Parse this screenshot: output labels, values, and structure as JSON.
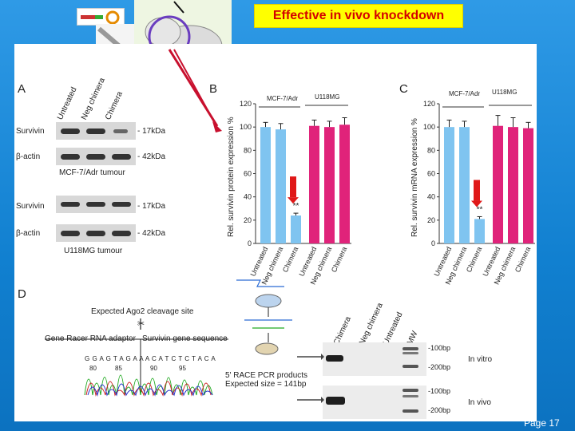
{
  "slide": {
    "title": "Effective in vivo knockdown",
    "page_label": "Page 17"
  },
  "panel_a": {
    "letter": "A",
    "lane_labels": [
      "Untreated",
      "Neg chimera",
      "Chimera"
    ],
    "blot_rows": [
      {
        "name": "Survivin",
        "size": "- 17kDa"
      },
      {
        "name": "β-actin",
        "size": "- 42kDa"
      },
      {
        "name": "Survivin",
        "size": "- 17kDa"
      },
      {
        "name": "β-actin",
        "size": "- 42kDa"
      }
    ],
    "group1": "MCF-7/Adr tumour",
    "group2": "U118MG tumour"
  },
  "panel_b": {
    "letter": "B",
    "ylabel": "Rel. survivin protein expression %",
    "groups": [
      "MCF-7/Adr",
      "U118MG"
    ],
    "significance": "**"
  },
  "panel_c": {
    "letter": "C",
    "ylabel": "Rel. survivin mRNA expression %",
    "groups": [
      "MCF-7/Adr",
      "U118MG"
    ],
    "significance": "**"
  },
  "panel_d": {
    "letter": "D",
    "cleavage_label": "Expected Ago2 cleavage site",
    "adaptor_label": "Gene Racer RNA adaptor",
    "gene_label": "Survivin gene sequence",
    "sequence": "G G A G T A G A A A C A T C T C T A C A",
    "positions": [
      "80",
      "85",
      "90",
      "95"
    ],
    "race_text": "5' RACE PCR products Expected size = 141bp",
    "gel_lanes": [
      "Chimera",
      "Neg chimera",
      "Untreated",
      "MW"
    ],
    "gel_markers": [
      "-100bp",
      "-200bp"
    ],
    "gel_conditions": [
      "In vitro",
      "In vivo"
    ]
  },
  "chart_data": [
    {
      "type": "bar",
      "title": "",
      "xlabel": "",
      "ylabel": "Rel. survivin protein expression %",
      "ylim": [
        0,
        120
      ],
      "yticks": [
        0,
        20,
        40,
        60,
        80,
        100,
        120
      ],
      "categories": [
        "Untreated",
        "Neg chimera",
        "Chimera",
        "Untreated",
        "Neg chimera",
        "Chimera"
      ],
      "groups": [
        "MCF-7/Adr",
        "U118MG"
      ],
      "values": [
        100,
        98,
        24,
        101,
        100,
        102
      ],
      "errors": [
        4,
        5,
        2,
        5,
        5,
        6
      ],
      "colors": [
        "#7fc4f0",
        "#7fc4f0",
        "#7fc4f0",
        "#e0237a",
        "#e0237a",
        "#e0237a"
      ]
    },
    {
      "type": "bar",
      "title": "",
      "xlabel": "",
      "ylabel": "Rel. survivin mRNA expression %",
      "ylim": [
        0,
        120
      ],
      "yticks": [
        0,
        20,
        40,
        60,
        80,
        100,
        120
      ],
      "categories": [
        "Untreated",
        "Neg chimera",
        "Chimera",
        "Untreated",
        "Neg chimera",
        "Chimera"
      ],
      "groups": [
        "MCF-7/Adr",
        "U118MG"
      ],
      "values": [
        100,
        100,
        21,
        101,
        100,
        99
      ],
      "errors": [
        6,
        5,
        2,
        9,
        8,
        5
      ],
      "colors": [
        "#7fc4f0",
        "#7fc4f0",
        "#7fc4f0",
        "#e0237a",
        "#e0237a",
        "#e0237a"
      ]
    }
  ]
}
